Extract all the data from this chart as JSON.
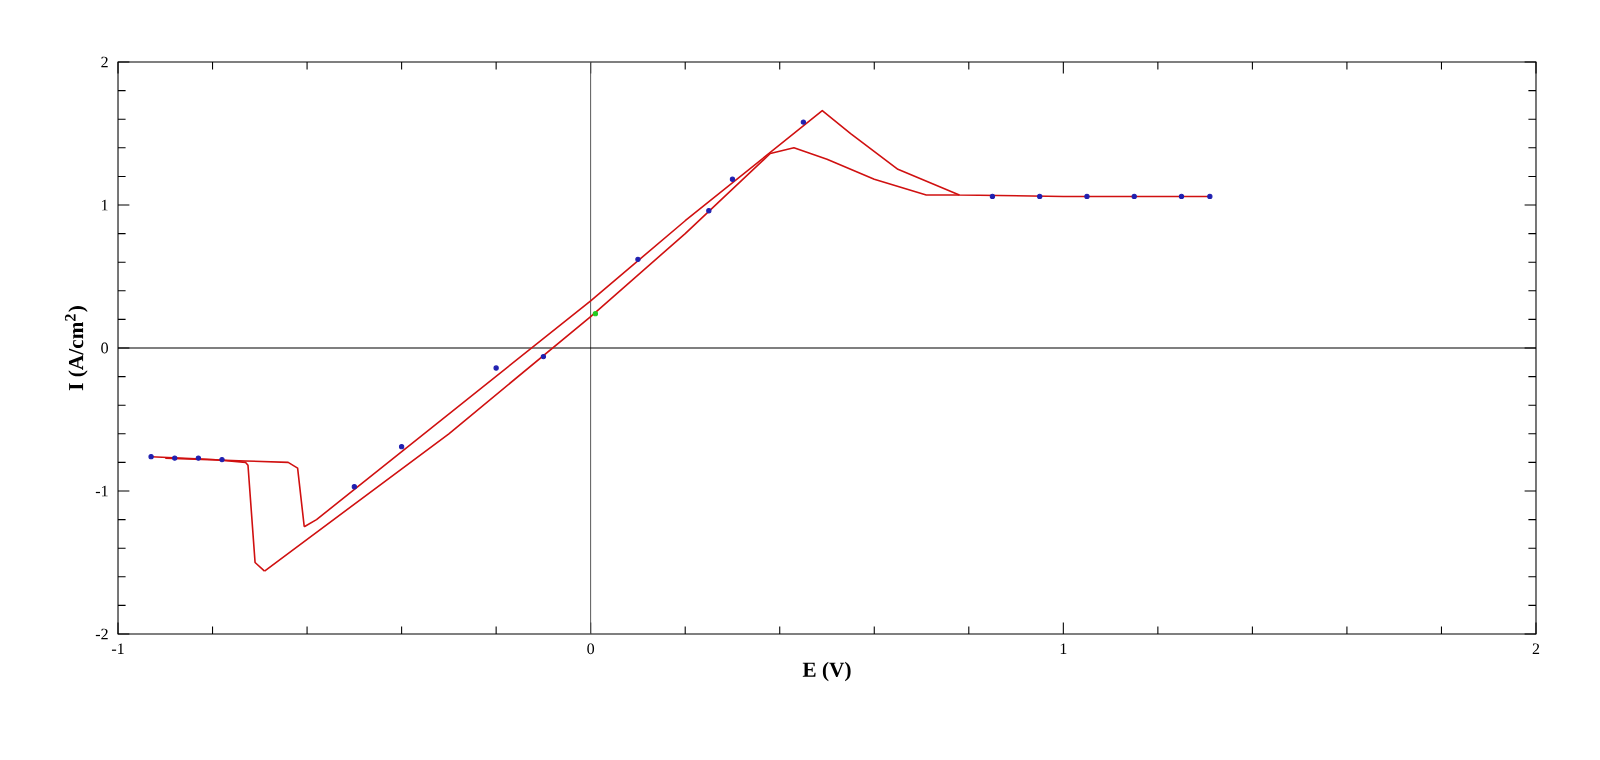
{
  "chart_data": {
    "type": "line",
    "xlabel": "E (V)",
    "ylabel": "I (A/cm$^{2}$)",
    "xlim": [
      -1,
      2
    ],
    "ylim": [
      -2,
      2
    ],
    "xticks": [
      -1,
      0,
      1,
      2
    ],
    "yticks": [
      -2,
      -1,
      0,
      1,
      2
    ],
    "ref_lines": [
      {
        "axis": "x",
        "value": 0,
        "color": "#555555"
      },
      {
        "axis": "y",
        "value": 0,
        "color": "#000000"
      }
    ],
    "series": [
      {
        "color": "#d01010",
        "x": [
          -0.606,
          -0.58,
          0,
          0.2,
          0.49,
          0.55,
          0.65,
          0.78,
          1.0,
          1.31
        ],
        "values": [
          -1.25,
          -1.2,
          0.33,
          0.89,
          1.66,
          1.5,
          1.25,
          1.07,
          1.06,
          1.06
        ]
      },
      {
        "color": "#d01010",
        "x": [
          -0.69,
          -0.3,
          0,
          0.2,
          0.38,
          0.43,
          0.5,
          0.6,
          0.71,
          0.78
        ],
        "values": [
          -1.56,
          -0.6,
          0.22,
          0.8,
          1.36,
          1.4,
          1.32,
          1.18,
          1.07,
          1.07
        ]
      },
      {
        "color": "#d01010",
        "x": [
          -0.93,
          -0.8,
          -0.73,
          -0.725,
          -0.71,
          -0.69
        ],
        "values": [
          -0.76,
          -0.78,
          -0.8,
          -0.82,
          -1.5,
          -1.56
        ]
      },
      {
        "color": "#d01010",
        "x": [
          -0.9,
          -0.73,
          -0.64,
          -0.62,
          -0.606
        ],
        "values": [
          -0.77,
          -0.79,
          -0.8,
          -0.84,
          -1.25
        ]
      },
      {
        "type": "scatter",
        "color": "#2020b0",
        "x": [
          -0.93,
          -0.88,
          -0.83,
          -0.78,
          -0.4,
          -0.2,
          0.1,
          0.3,
          0.45,
          -0.5,
          -0.1,
          0.25,
          0.85,
          0.95,
          1.05,
          1.15,
          1.25,
          1.31
        ],
        "values": [
          -0.76,
          -0.77,
          -0.77,
          -0.78,
          -0.69,
          -0.14,
          0.62,
          1.18,
          1.58,
          -0.97,
          -0.06,
          0.96,
          1.06,
          1.06,
          1.06,
          1.06,
          1.06,
          1.06
        ]
      },
      {
        "type": "scatter",
        "color": "#22cc22",
        "x": [
          0.01
        ],
        "values": [
          0.24
        ]
      }
    ]
  }
}
